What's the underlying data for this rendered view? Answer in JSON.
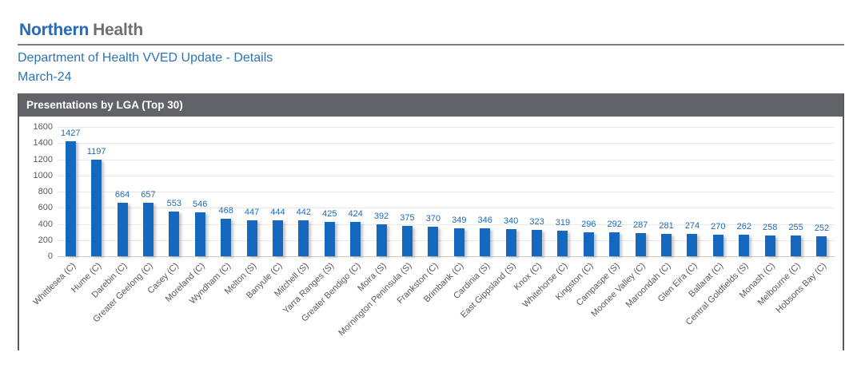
{
  "header": {
    "logo_part1": "Northern",
    "logo_part2": "Health",
    "title": "Department of Health VVED Update - Details",
    "subtitle": "March-24"
  },
  "panel": {
    "title": "Presentations by LGA (Top 30)"
  },
  "chart_data": {
    "type": "bar",
    "title": "Presentations by LGA (Top 30)",
    "categories": [
      "Whittlesea (C)",
      "Hume (C)",
      "Darebin (C)",
      "Greater Geelong (C)",
      "Casey (C)",
      "Moreland (C)",
      "Wyndham (C)",
      "Melton (S)",
      "Banyule (C)",
      "Mitchell (S)",
      "Yarra Ranges (S)",
      "Greater Bendigo (C)",
      "Moira (S)",
      "Mornington Peninsula (S)",
      "Frankston (C)",
      "Brimbank (C)",
      "Cardinia (S)",
      "East Gippsland (S)",
      "Knox (C)",
      "Whitehorse (C)",
      "Kingston (C)",
      "Campaspe (S)",
      "Moonee Valley (C)",
      "Maroondah (C)",
      "Glen Eira (C)",
      "Ballarat (C)",
      "Central Goldfields (S)",
      "Monash (C)",
      "Melbourne (C)",
      "Hobsons Bay (C)"
    ],
    "values": [
      1427,
      1197,
      664,
      657,
      553,
      546,
      468,
      447,
      444,
      442,
      425,
      424,
      392,
      375,
      370,
      349,
      346,
      340,
      323,
      319,
      296,
      292,
      287,
      281,
      274,
      270,
      262,
      258,
      255,
      252
    ],
    "xlabel": "",
    "ylabel": "",
    "ylim": [
      0,
      1600
    ],
    "ytick_interval": 200,
    "grid": true,
    "legend": false,
    "bar_labels": true
  },
  "colors": {
    "logo-blue": "#2b6cb8",
    "logo-gray": "#6e7073",
    "rule-gray": "#808080",
    "heading-blue": "#2e74b5",
    "panel-border": "#595959",
    "titlebar-bg": "#616366",
    "titlebar-text": "#ffffff",
    "bar-blue": "#1468be",
    "value-label-blue": "#1f6bb5",
    "axis-text": "#595959",
    "gridline": "#e8e8e8",
    "baseline": "#c9c9c9"
  }
}
